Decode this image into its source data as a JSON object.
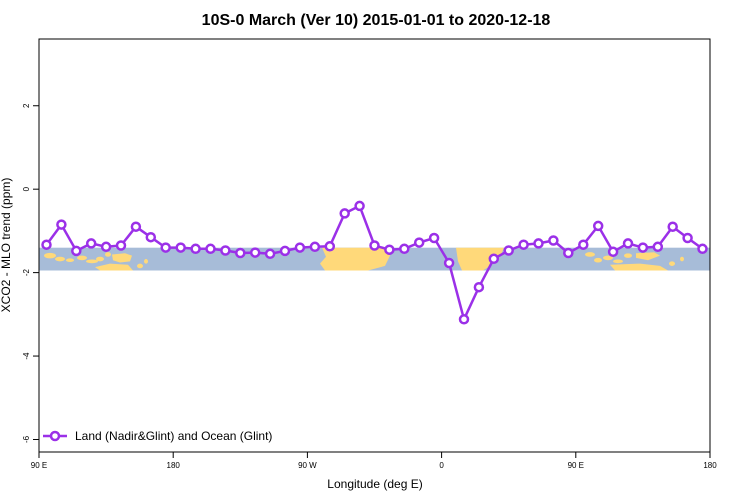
{
  "chart_data": {
    "type": "line",
    "title": "10S-0 March (Ver 10)   2015-01-01 to 2020-12-18",
    "xlabel": "Longitude (deg E)",
    "ylabel": "XCO2 - MLO trend (ppm)",
    "xlim": [
      90,
      450
    ],
    "ylim": [
      -6.3,
      3.6
    ],
    "x_ticks": [
      {
        "value": 90,
        "label": "90 E"
      },
      {
        "value": 162,
        "label": "180"
      },
      {
        "value": 234,
        "label": "90 W"
      },
      {
        "value": 306,
        "label": "0"
      },
      {
        "value": 378,
        "label": "90 E"
      },
      {
        "value": 450,
        "label": "180"
      }
    ],
    "y_ticks": [
      {
        "value": 2,
        "label": "2"
      },
      {
        "value": 0,
        "label": "0"
      },
      {
        "value": -2,
        "label": "-2"
      },
      {
        "value": -4,
        "label": "-4"
      },
      {
        "value": -6,
        "label": "-6"
      }
    ],
    "map_band": {
      "ymin": -1.95,
      "ymax": -1.4,
      "ocean_color": "#a7bcd8",
      "land_color": "#ffd97a"
    },
    "series": [
      {
        "name": "Land (Nadir&Glint) and Ocean (Glint)",
        "color": "#9b30e8",
        "x": [
          94,
          102,
          110,
          118,
          126,
          134,
          142,
          150,
          158,
          166,
          174,
          182,
          190,
          198,
          206,
          214,
          222,
          230,
          238,
          246,
          254,
          262,
          270,
          278,
          286,
          294,
          302,
          310,
          318,
          326,
          334,
          342,
          350,
          358,
          366,
          374,
          382,
          390,
          398,
          406,
          414,
          422,
          430,
          438,
          446
        ],
        "values": [
          -1.33,
          -0.85,
          -1.48,
          -1.3,
          -1.38,
          -1.35,
          -0.9,
          -1.15,
          -1.4,
          -1.4,
          -1.43,
          -1.43,
          -1.47,
          -1.53,
          -1.52,
          -1.55,
          -1.48,
          -1.4,
          -1.38,
          -1.37,
          -0.58,
          -0.4,
          -1.35,
          -1.45,
          -1.43,
          -1.28,
          -1.17,
          -1.77,
          -3.12,
          -2.35,
          -1.67,
          -1.47,
          -1.33,
          -1.3,
          -1.23,
          -1.53,
          -1.33,
          -0.88,
          -1.5,
          -1.3,
          -1.4,
          -1.38,
          -0.9,
          -1.17,
          -1.43
        ]
      }
    ],
    "legend": {
      "position": "bottom-left"
    }
  }
}
